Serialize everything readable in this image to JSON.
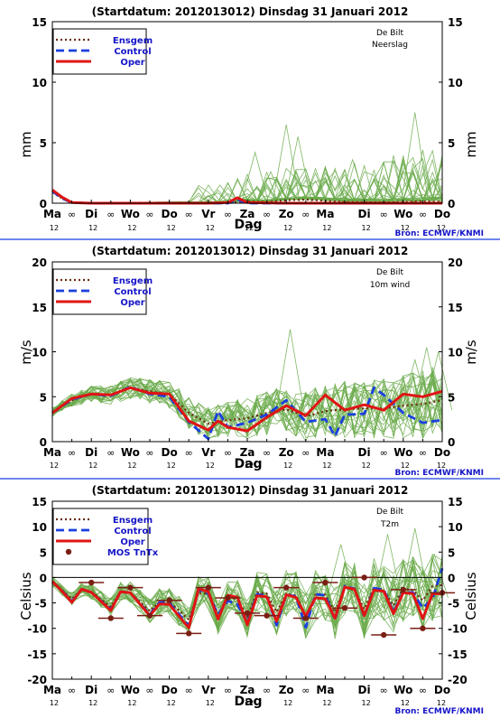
{
  "colors": {
    "ensemble": "#6aaa4a",
    "ensgem": "#6b2e12",
    "control": "#1a3fe0",
    "oper": "#e01414",
    "mos": "#7a1e14",
    "separator": "#1a3fe0",
    "source": "#1515c8"
  },
  "x_axis": {
    "day_labels": [
      "Ma",
      "Di",
      "Wo",
      "Do",
      "Vr",
      "Za",
      "Zo",
      "Ma",
      "Di",
      "Wo",
      "Do"
    ],
    "midday_label": "12",
    "midnight_symbol": "∞",
    "xlabel": "Dag"
  },
  "source_label": "Bron: ECMWF/KNMI",
  "legend": {
    "ensgem": "Ensgem",
    "control": "Control",
    "oper": "Oper",
    "mos": "MOS TnTx"
  },
  "chart_data": [
    {
      "type": "line",
      "title": "(Startdatum: 2012013012)   Dinsdag   31 Januari   2012",
      "station": "De Bilt",
      "variable": "Neerslag",
      "ylabel": "mm",
      "ylim": [
        0,
        15
      ],
      "yticks": [
        0,
        5,
        10,
        15
      ],
      "xlim": [
        0,
        10
      ],
      "grid": false,
      "legend_position": "top-left",
      "series": [
        {
          "name": "Ensgem",
          "x": [
            0,
            0.25,
            0.5,
            1,
            2,
            3,
            4,
            4.5,
            4.75,
            5,
            5.5,
            6,
            6.5,
            7,
            7.5,
            8,
            8.5,
            9,
            9.5,
            10
          ],
          "values": [
            0.9,
            0.4,
            0.05,
            0,
            0,
            0,
            0,
            0,
            0.1,
            0.15,
            0.1,
            0.25,
            0.3,
            0.2,
            0.1,
            0.08,
            0.05,
            0.1,
            0.15,
            0.1
          ]
        },
        {
          "name": "Control",
          "x": [
            0,
            0.25,
            0.5,
            1,
            2,
            3,
            4,
            4.5,
            4.75,
            5,
            6,
            7,
            8,
            9,
            10
          ],
          "values": [
            1.0,
            0.4,
            0.05,
            0,
            0,
            0,
            0,
            0,
            0.3,
            0,
            0,
            0,
            0,
            0,
            0
          ]
        },
        {
          "name": "Oper",
          "x": [
            0,
            0.25,
            0.5,
            1,
            2,
            3,
            4,
            4.5,
            4.75,
            5,
            6,
            7,
            8,
            9,
            10
          ],
          "values": [
            1.1,
            0.5,
            0.05,
            0,
            0,
            0,
            0,
            0.05,
            0.45,
            0.05,
            0,
            0,
            0,
            0,
            0
          ]
        }
      ],
      "ensemble_peaks": [
        6.5,
        5.5,
        4.2,
        3.6,
        7.5,
        2.6,
        1.5
      ]
    },
    {
      "type": "line",
      "title": "(Startdatum: 2012013012)   Dinsdag   31 Januari   2012",
      "station": "De Bilt",
      "variable": "10m wind",
      "ylabel": "m/s",
      "ylim": [
        0,
        20
      ],
      "yticks": [
        0,
        5,
        10,
        15,
        20
      ],
      "xlim": [
        0,
        10
      ],
      "grid": false,
      "legend_position": "top-left",
      "series": [
        {
          "name": "Ensgem",
          "x": [
            0,
            0.5,
            1,
            1.5,
            2,
            2.5,
            3,
            3.5,
            4,
            4.5,
            5,
            5.5,
            6,
            6.5,
            7,
            7.5,
            8,
            8.5,
            9,
            9.5,
            10
          ],
          "values": [
            3.3,
            4.6,
            5.3,
            5.2,
            6.0,
            5.6,
            5.3,
            3.2,
            2.0,
            2.4,
            2.6,
            3.2,
            3.6,
            2.8,
            3.4,
            3.6,
            3.7,
            3.7,
            4.0,
            4.2,
            4.6
          ]
        },
        {
          "name": "Control",
          "x": [
            0,
            0.5,
            1,
            1.5,
            2,
            2.5,
            3,
            3.5,
            4,
            4.25,
            4.5,
            5,
            5.5,
            6,
            6.5,
            7,
            7.25,
            7.5,
            8,
            8.25,
            8.5,
            9,
            9.5,
            10
          ],
          "values": [
            3.2,
            4.7,
            5.3,
            5.1,
            6.1,
            5.3,
            5.0,
            2.2,
            0.3,
            3.4,
            1.6,
            2.1,
            3.0,
            4.6,
            2.2,
            2.5,
            0.6,
            3.0,
            3.1,
            6.0,
            5.2,
            3.2,
            2.1,
            2.4
          ]
        },
        {
          "name": "Oper",
          "x": [
            0,
            0.5,
            1,
            1.5,
            2,
            2.5,
            3,
            3.5,
            4,
            4.25,
            4.5,
            5,
            5.5,
            6,
            6.5,
            7,
            7.5,
            8,
            8.5,
            9,
            9.5,
            10
          ],
          "values": [
            3.2,
            4.8,
            5.3,
            5.2,
            6.0,
            5.4,
            5.3,
            2.3,
            1.3,
            2.3,
            1.6,
            1.2,
            2.7,
            4.0,
            2.9,
            5.2,
            3.5,
            4.1,
            3.5,
            5.3,
            5.0,
            5.6
          ]
        }
      ],
      "ensemble_peaks": [
        12.5,
        9.1,
        10.5,
        10.0
      ]
    },
    {
      "type": "line",
      "title": "(Startdatum: 2012013012)   Dinsdag   31 Januari   2012",
      "station": "De Bilt",
      "variable": "T2m",
      "ylabel": "Celsius",
      "ylim": [
        -20,
        15
      ],
      "yticks": [
        -20,
        -15,
        -10,
        -5,
        0,
        5,
        10,
        15
      ],
      "xlim": [
        0,
        10
      ],
      "grid": false,
      "legend_position": "top-left",
      "series": [
        {
          "name": "Ensgem",
          "x": [
            0,
            0.25,
            0.5,
            0.75,
            1,
            1.5,
            1.75,
            2,
            2.5,
            2.75,
            3,
            3.5,
            3.75,
            4,
            4.25,
            4.5,
            4.75,
            5,
            5.25,
            5.5,
            5.75,
            6,
            6.25,
            6.5,
            6.75,
            7,
            7.25,
            7.5,
            7.75,
            8,
            8.25,
            8.5,
            8.75,
            9,
            9.25,
            9.5,
            9.75,
            10
          ],
          "values": [
            -0.8,
            -2.5,
            -4.2,
            -2.5,
            -2.8,
            -5.8,
            -2.8,
            -3.0,
            -6.6,
            -4.8,
            -4.8,
            -8.3,
            -3.0,
            -3.2,
            -7.7,
            -3.6,
            -4.4,
            -7.7,
            -2.9,
            -3.2,
            -6.8,
            -3.2,
            -3.6,
            -7.8,
            -3.4,
            -3.4,
            -6.8,
            -2.0,
            -2.5,
            -6.2,
            -2.0,
            -2.5,
            -5.5,
            -2.2,
            -2.5,
            -4.5,
            -1.7,
            -1.5
          ]
        },
        {
          "name": "Control",
          "x": [
            0,
            0.25,
            0.5,
            0.75,
            1,
            1.5,
            1.75,
            2,
            2.5,
            2.75,
            3,
            3.5,
            3.75,
            4,
            4.25,
            4.5,
            4.75,
            5,
            5.25,
            5.5,
            5.75,
            6,
            6.25,
            6.5,
            6.75,
            7,
            7.25,
            7.5,
            7.75,
            8,
            8.25,
            8.5,
            8.75,
            9,
            9.25,
            9.5,
            9.75,
            10
          ],
          "values": [
            -0.8,
            -2.6,
            -4.7,
            -2.3,
            -2.9,
            -6.3,
            -2.8,
            -3.0,
            -7.3,
            -4.9,
            -5.0,
            -9.5,
            -2.4,
            -3.2,
            -7.2,
            -4.6,
            -5.3,
            -8.9,
            -3.3,
            -3.6,
            -9.4,
            -3.4,
            -3.7,
            -9.8,
            -3.3,
            -3.5,
            -8.3,
            -1.7,
            -2.2,
            -7.7,
            -2.1,
            -2.4,
            -6.8,
            -2.8,
            -3.0,
            -6.0,
            -4.2,
            1.8
          ]
        },
        {
          "name": "Oper",
          "x": [
            0,
            0.25,
            0.5,
            0.75,
            1,
            1.5,
            1.75,
            2,
            2.5,
            2.75,
            3,
            3.5,
            3.75,
            4,
            4.25,
            4.5,
            4.75,
            5,
            5.25,
            5.5,
            5.75,
            6,
            6.25,
            6.5,
            6.75,
            7,
            7.25,
            7.5,
            7.75,
            8,
            8.25,
            8.5,
            8.75,
            9,
            9.25,
            9.5,
            9.75,
            10
          ],
          "values": [
            -0.8,
            -2.7,
            -4.9,
            -2.3,
            -2.9,
            -6.5,
            -2.8,
            -3.0,
            -7.5,
            -5.2,
            -5.3,
            -9.9,
            -2.2,
            -2.8,
            -8.2,
            -3.5,
            -3.9,
            -9.3,
            -3.6,
            -3.8,
            -8.6,
            -3.4,
            -3.9,
            -7.6,
            -4.0,
            -4.2,
            -8.0,
            -1.9,
            -2.3,
            -7.5,
            -2.5,
            -2.7,
            -7.1,
            -3.0,
            -3.2,
            -8.1,
            -3.2,
            -3.2
          ]
        },
        {
          "name": "MOS TnTx",
          "x": [
            1,
            1.5,
            2,
            2.5,
            3,
            3.5,
            4,
            4.5,
            5,
            5.5,
            6,
            6.5,
            7,
            7.5,
            8,
            8.5,
            9,
            9.5,
            10
          ],
          "values": [
            -1,
            -8,
            -2,
            -7.5,
            -4.5,
            -11,
            -2,
            -4,
            -7,
            -7.5,
            -2,
            -8,
            -1,
            -6,
            0,
            -11.3,
            -2.4,
            -10,
            -3
          ]
        }
      ],
      "ensemble_peaks": [
        8.5,
        9.7,
        4.5,
        6.5
      ]
    }
  ]
}
